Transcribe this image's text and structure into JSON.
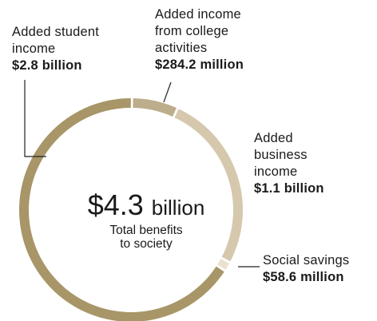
{
  "chart_data": {
    "type": "pie",
    "center": {
      "total_amount": "$4.3",
      "total_unit": "billion",
      "subtitle_line1": "Total benefits",
      "subtitle_line2": "to society"
    },
    "slices": [
      {
        "label_lines": [
          "Added income",
          "from college",
          "activities"
        ],
        "value_label": "$284.2 million",
        "value": 284.2,
        "color": "#bcae8b"
      },
      {
        "label_lines": [
          "Added",
          "business",
          "income"
        ],
        "value_label": "$1.1 billion",
        "value": 1100,
        "color": "#d5c8ad"
      },
      {
        "label_lines": [
          "Social savings"
        ],
        "value_label": "$58.6 million",
        "value": 58.6,
        "color": "#eae1cf"
      },
      {
        "label_lines": [
          "Added student",
          "income"
        ],
        "value_label": "$2.8 billion",
        "value": 2800,
        "color": "#a89668"
      }
    ],
    "unit": "million USD"
  },
  "colors": {
    "leader_line": "#222222",
    "background": "#ffffff"
  }
}
